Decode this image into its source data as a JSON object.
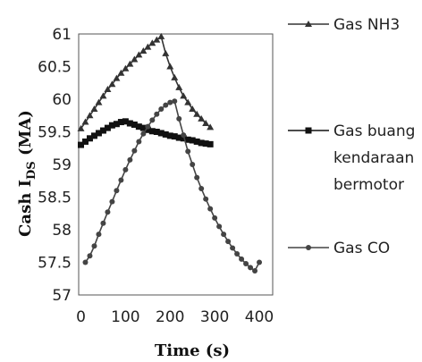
{
  "chart_data": {
    "type": "line",
    "title": "",
    "xlabel": "Time (s)",
    "ylabel_main": "Cash I",
    "ylabel_sub": "DS",
    "ylabel_unit": " (MA)",
    "xlim": [
      -5,
      430
    ],
    "ylim": [
      57,
      61
    ],
    "xticks": [
      0,
      100,
      200,
      300,
      400
    ],
    "yticks": [
      57,
      57.5,
      58,
      58.5,
      59,
      59.5,
      60,
      60.5,
      61
    ],
    "grid": false,
    "legend": "right",
    "series": [
      {
        "name": "Gas NH3",
        "marker": "triangle",
        "color": "#333333",
        "x": [
          0,
          10,
          20,
          30,
          40,
          50,
          60,
          70,
          80,
          90,
          100,
          110,
          120,
          130,
          140,
          150,
          160,
          170,
          180,
          190,
          200,
          210,
          220,
          230,
          240,
          250,
          260,
          270,
          280,
          290
        ],
        "y": [
          59.55,
          59.65,
          59.75,
          59.85,
          59.95,
          60.05,
          60.15,
          60.23,
          60.32,
          60.4,
          60.47,
          60.54,
          60.61,
          60.68,
          60.74,
          60.8,
          60.86,
          60.91,
          60.96,
          60.7,
          60.5,
          60.33,
          60.18,
          60.05,
          59.95,
          59.85,
          59.77,
          59.7,
          59.63,
          59.57
        ]
      },
      {
        "name": "Gas buang kendaraan bermotor",
        "marker": "square",
        "color": "#111111",
        "x": [
          0,
          10,
          20,
          30,
          40,
          50,
          60,
          70,
          80,
          90,
          100,
          110,
          120,
          130,
          140,
          150,
          160,
          170,
          180,
          190,
          200,
          210,
          220,
          230,
          240,
          250,
          260,
          270,
          280,
          290
        ],
        "y": [
          59.3,
          59.35,
          59.4,
          59.44,
          59.48,
          59.52,
          59.56,
          59.6,
          59.62,
          59.65,
          59.66,
          59.63,
          59.61,
          59.58,
          59.56,
          59.53,
          59.51,
          59.5,
          59.48,
          59.46,
          59.44,
          59.43,
          59.41,
          59.4,
          59.38,
          59.37,
          59.35,
          59.33,
          59.32,
          59.31
        ]
      },
      {
        "name": "Gas CO",
        "marker": "circle",
        "color": "#444444",
        "x": [
          10,
          20,
          30,
          40,
          50,
          60,
          70,
          80,
          90,
          100,
          110,
          120,
          130,
          140,
          150,
          160,
          170,
          180,
          190,
          200,
          210,
          220,
          230,
          240,
          250,
          260,
          270,
          280,
          290,
          300,
          310,
          320,
          330,
          340,
          350,
          360,
          370,
          380,
          390,
          400
        ],
        "y": [
          57.5,
          57.6,
          57.75,
          57.93,
          58.1,
          58.27,
          58.43,
          58.6,
          58.76,
          58.92,
          59.07,
          59.21,
          59.35,
          59.47,
          59.58,
          59.68,
          59.77,
          59.85,
          59.91,
          59.95,
          59.97,
          59.7,
          59.45,
          59.2,
          59.0,
          58.8,
          58.63,
          58.47,
          58.32,
          58.18,
          58.05,
          57.93,
          57.82,
          57.72,
          57.63,
          57.55,
          57.48,
          57.42,
          57.37,
          57.5
        ]
      }
    ],
    "legend_entries": [
      {
        "lines": [
          "Gas NH3"
        ]
      },
      {
        "lines": [
          "Gas buang",
          "kendaraan",
          "bermotor"
        ]
      },
      {
        "lines": [
          "Gas CO"
        ]
      }
    ]
  }
}
